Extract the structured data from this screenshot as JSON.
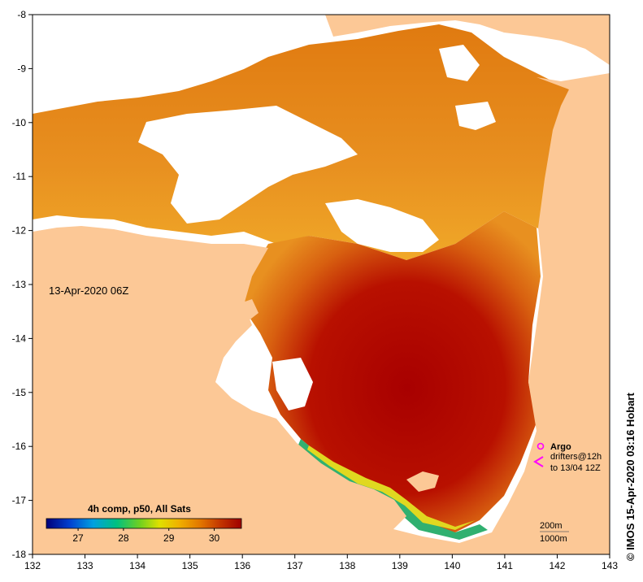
{
  "map": {
    "timestamp_label": "13-Apr-2020 06Z",
    "credit": "© IMOS 15-Apr-2020 03:16 Hobart",
    "lon_ticks": [
      "132",
      "133",
      "134",
      "135",
      "136",
      "137",
      "138",
      "139",
      "140",
      "141",
      "142",
      "143"
    ],
    "lat_ticks": [
      "-8",
      "-9",
      "-10",
      "-11",
      "-12",
      "-13",
      "-14",
      "-15",
      "-16",
      "-17",
      "-18"
    ],
    "lon_range": [
      132,
      143
    ],
    "lat_range": [
      -8,
      -18
    ],
    "colorbar": {
      "title": "4h comp, p50, All Sats",
      "ticks": [
        "27",
        "28",
        "29",
        "30"
      ],
      "range": [
        26.3,
        30.6
      ],
      "stops": [
        "#00007a",
        "#0040d0",
        "#00a0e0",
        "#00c080",
        "#70d020",
        "#e0e000",
        "#f0b000",
        "#e07000",
        "#c03000",
        "#a00000"
      ]
    },
    "legend": {
      "argo_label": "Argo",
      "drifters_line1": "drifters@12h",
      "drifters_line2": "to 13/04 12Z"
    },
    "bathymetry": {
      "line1": "200m",
      "line2": "1000m"
    },
    "colors": {
      "land": "#fcc896",
      "sst_hot": "#b00000",
      "sst_warm": "#e07010",
      "sst_mid": "#f0a020",
      "sst_cool": "#d0d020",
      "cloud": "#ffffff",
      "argo": "#ff00ff"
    }
  }
}
